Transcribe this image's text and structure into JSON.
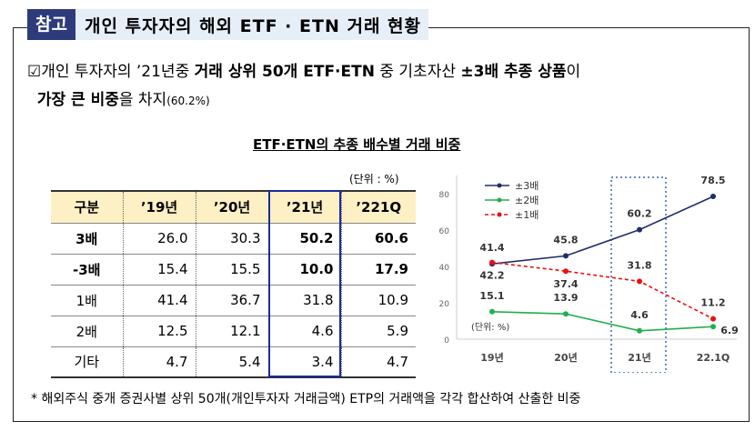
{
  "header": {
    "tag": "참고",
    "title": "개인 투자자의 해외 ETF · ETN 거래 현황"
  },
  "bullet": {
    "icon": "checkbox-icon",
    "t1": "개인 투자자의 ’21년중 ",
    "b1": "거래 상위 50개 ETF·ETN",
    "t2": " 중 기초자산 ",
    "b2": "±3배 추종 상품",
    "t3": "이 ",
    "b3": "가장 큰 비중",
    "t4": "을 차지",
    "t5": "(60.2%)"
  },
  "table": {
    "title": "ETF·ETN의 추종 배수별 거래 비중",
    "unit": "(단위 : %)",
    "headers": [
      "구분",
      "’19년",
      "’20년",
      "’21년",
      "’221Q"
    ],
    "rows": [
      [
        "3배",
        "26.0",
        "30.3",
        "50.2",
        "60.6"
      ],
      [
        "-3배",
        "15.4",
        "15.5",
        "10.0",
        "17.9"
      ],
      [
        "1배",
        "41.4",
        "36.7",
        "31.8",
        "10.9"
      ],
      [
        "2배",
        "12.5",
        "12.1",
        "4.6",
        "5.9"
      ],
      [
        "기타",
        "4.7",
        "5.4",
        "3.4",
        "4.7"
      ]
    ]
  },
  "chart_data": {
    "type": "line",
    "categories": [
      "19년",
      "20년",
      "21년",
      "22.1Q"
    ],
    "ylim": [
      0,
      80
    ],
    "yticks": [
      "0",
      "20",
      "40",
      "60",
      "80"
    ],
    "unit_label": "(단위: %)",
    "legend_position": "top-left",
    "series": [
      {
        "name": "±3배",
        "values": [
          41.4,
          45.8,
          60.2,
          78.5
        ],
        "color": "#1f2d6b",
        "dash": false
      },
      {
        "name": "±2배",
        "values": [
          15.1,
          13.9,
          4.6,
          6.9
        ],
        "color": "#20b04a",
        "dash": false
      },
      {
        "name": "±1배",
        "values": [
          42.2,
          37.4,
          31.8,
          11.2
        ],
        "color": "#e81010",
        "dash": true
      }
    ]
  },
  "footnote": "* 해외주식 중개 증권사별 상위 50개(개인투자자 거래금액) ETP의 거래액을 각각 합산하여 산출한 비중"
}
